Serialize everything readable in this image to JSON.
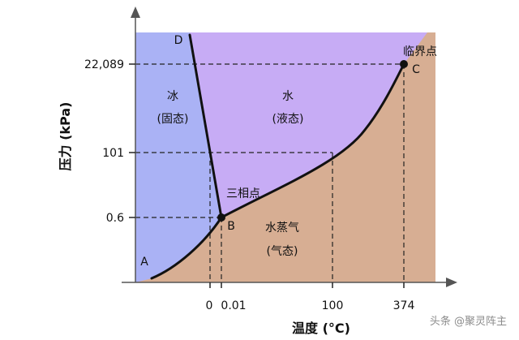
{
  "chart_data": {
    "type": "area",
    "title": "",
    "xlabel": "温度 (°C)",
    "ylabel": "压力 (kPa)",
    "x_ticks": [
      "0",
      "0.01",
      "100",
      "374"
    ],
    "y_ticks": [
      "0.6",
      "101",
      "22,089"
    ],
    "regions": [
      {
        "name": "ice",
        "label": "冰",
        "sublabel": "(固态)"
      },
      {
        "name": "water",
        "label": "水",
        "sublabel": "(液态)"
      },
      {
        "name": "vapor",
        "label": "水蒸气",
        "sublabel": "(气态)"
      }
    ],
    "points": [
      {
        "id": "A",
        "label": "A",
        "x_label": "",
        "y_label": ""
      },
      {
        "id": "B",
        "label": "B",
        "x_label": "0.01",
        "y_label": "0.6"
      },
      {
        "id": "C",
        "label": "C",
        "x_label": "374",
        "y_label": "22,089"
      },
      {
        "id": "D",
        "label": "D",
        "x_label": "",
        "y_label": ""
      }
    ],
    "annotations": {
      "triple_point": "三相点",
      "critical_point": "临界点"
    },
    "reference_lines": [
      {
        "axis": "y",
        "at": "0.6"
      },
      {
        "axis": "y",
        "at": "101"
      },
      {
        "axis": "y",
        "at": "22,089"
      },
      {
        "axis": "x",
        "at": "0"
      },
      {
        "axis": "x",
        "at": "0.01"
      },
      {
        "axis": "x",
        "at": "100"
      },
      {
        "axis": "x",
        "at": "374"
      }
    ],
    "colors": {
      "ice": "#aab2f5",
      "water": "#c7acf5",
      "vapor": "#d7ae93",
      "curve": "#111111",
      "axis": "#555555"
    }
  },
  "watermark": "头条 @聚灵阵主"
}
